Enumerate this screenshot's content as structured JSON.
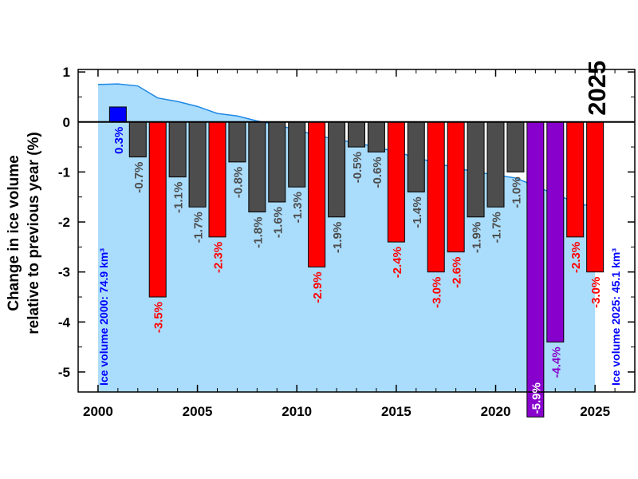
{
  "chart_data": {
    "type": "bar",
    "ylabel_line1": "Change in ice volume",
    "ylabel_line2": "relative to previous year (%)",
    "xlim": [
      1999,
      2027
    ],
    "ylim": [
      -5.4,
      1.05
    ],
    "xticks": [
      2000,
      2005,
      2010,
      2015,
      2020,
      2025
    ],
    "yticks": [
      1,
      0,
      -1,
      -2,
      -3,
      -4,
      -5
    ],
    "highlight_year_label": "2025",
    "ice_volume_start_label": "Ice volume 2000: 74.9 km³",
    "ice_volume_end_label": "Ice volume 2025: 45.1 km³",
    "bars": [
      {
        "year": 2001,
        "value": 0.3,
        "label": "0.3%",
        "color": "#0000ff"
      },
      {
        "year": 2002,
        "value": -0.7,
        "label": "-0.7%",
        "color": "#4d4d4d"
      },
      {
        "year": 2003,
        "value": -3.5,
        "label": "-3.5%",
        "color": "#ff0000"
      },
      {
        "year": 2004,
        "value": -1.1,
        "label": "-1.1%",
        "color": "#4d4d4d"
      },
      {
        "year": 2005,
        "value": -1.7,
        "label": "-1.7%",
        "color": "#4d4d4d"
      },
      {
        "year": 2006,
        "value": -2.3,
        "label": "-2.3%",
        "color": "#ff0000"
      },
      {
        "year": 2007,
        "value": -0.8,
        "label": "-0.8%",
        "color": "#4d4d4d"
      },
      {
        "year": 2008,
        "value": -1.8,
        "label": "-1.8%",
        "color": "#4d4d4d"
      },
      {
        "year": 2009,
        "value": -1.6,
        "label": "-1.6%",
        "color": "#4d4d4d"
      },
      {
        "year": 2010,
        "value": -1.3,
        "label": "-1.3%",
        "color": "#4d4d4d"
      },
      {
        "year": 2011,
        "value": -2.9,
        "label": "-2.9%",
        "color": "#ff0000"
      },
      {
        "year": 2012,
        "value": -1.9,
        "label": "-1.9%",
        "color": "#4d4d4d"
      },
      {
        "year": 2013,
        "value": -0.5,
        "label": "-0.5%",
        "color": "#4d4d4d"
      },
      {
        "year": 2014,
        "value": -0.6,
        "label": "-0.6%",
        "color": "#4d4d4d"
      },
      {
        "year": 2015,
        "value": -2.4,
        "label": "-2.4%",
        "color": "#ff0000"
      },
      {
        "year": 2016,
        "value": -1.4,
        "label": "-1.4%",
        "color": "#4d4d4d"
      },
      {
        "year": 2017,
        "value": -3.0,
        "label": "-3.0%",
        "color": "#ff0000"
      },
      {
        "year": 2018,
        "value": -2.6,
        "label": "-2.6%",
        "color": "#ff0000"
      },
      {
        "year": 2019,
        "value": -1.9,
        "label": "-1.9%",
        "color": "#4d4d4d"
      },
      {
        "year": 2020,
        "value": -1.7,
        "label": "-1.7%",
        "color": "#4d4d4d"
      },
      {
        "year": 2021,
        "value": -1.0,
        "label": "-1.0%",
        "color": "#4d4d4d"
      },
      {
        "year": 2022,
        "value": -5.9,
        "label": "-5.9%",
        "color": "#8800cc"
      },
      {
        "year": 2023,
        "value": -4.4,
        "label": "-4.4%",
        "color": "#8800cc"
      },
      {
        "year": 2024,
        "value": -2.3,
        "label": "-2.3%",
        "color": "#ff0000"
      },
      {
        "year": 2025,
        "value": -3.0,
        "label": "-3.0%",
        "color": "#ff0000"
      }
    ],
    "ice_volume_curve": {
      "x": [
        2000,
        2001,
        2002,
        2003,
        2004,
        2005,
        2006,
        2007,
        2008,
        2009,
        2010,
        2011,
        2012,
        2013,
        2014,
        2015,
        2016,
        2017,
        2018,
        2019,
        2020,
        2021,
        2022,
        2023,
        2024,
        2025
      ],
      "y": [
        0.75,
        0.76,
        0.72,
        0.48,
        0.41,
        0.31,
        0.17,
        0.12,
        0.02,
        -0.06,
        -0.16,
        -0.27,
        -0.35,
        -0.42,
        -0.5,
        -0.6,
        -0.71,
        -0.82,
        -0.92,
        -1.0,
        -1.06,
        -1.12,
        -1.28,
        -1.45,
        -1.6,
        -1.72
      ],
      "fill_color": "#aadcfb",
      "line_color": "#1e88e5"
    },
    "colors": {
      "above_average_gain": "#0000ff",
      "moderate_loss": "#4d4d4d",
      "large_loss": "#ff0000",
      "extreme_loss": "#8800cc",
      "annotation_blue": "#0000ff",
      "axis": "#000000"
    }
  }
}
